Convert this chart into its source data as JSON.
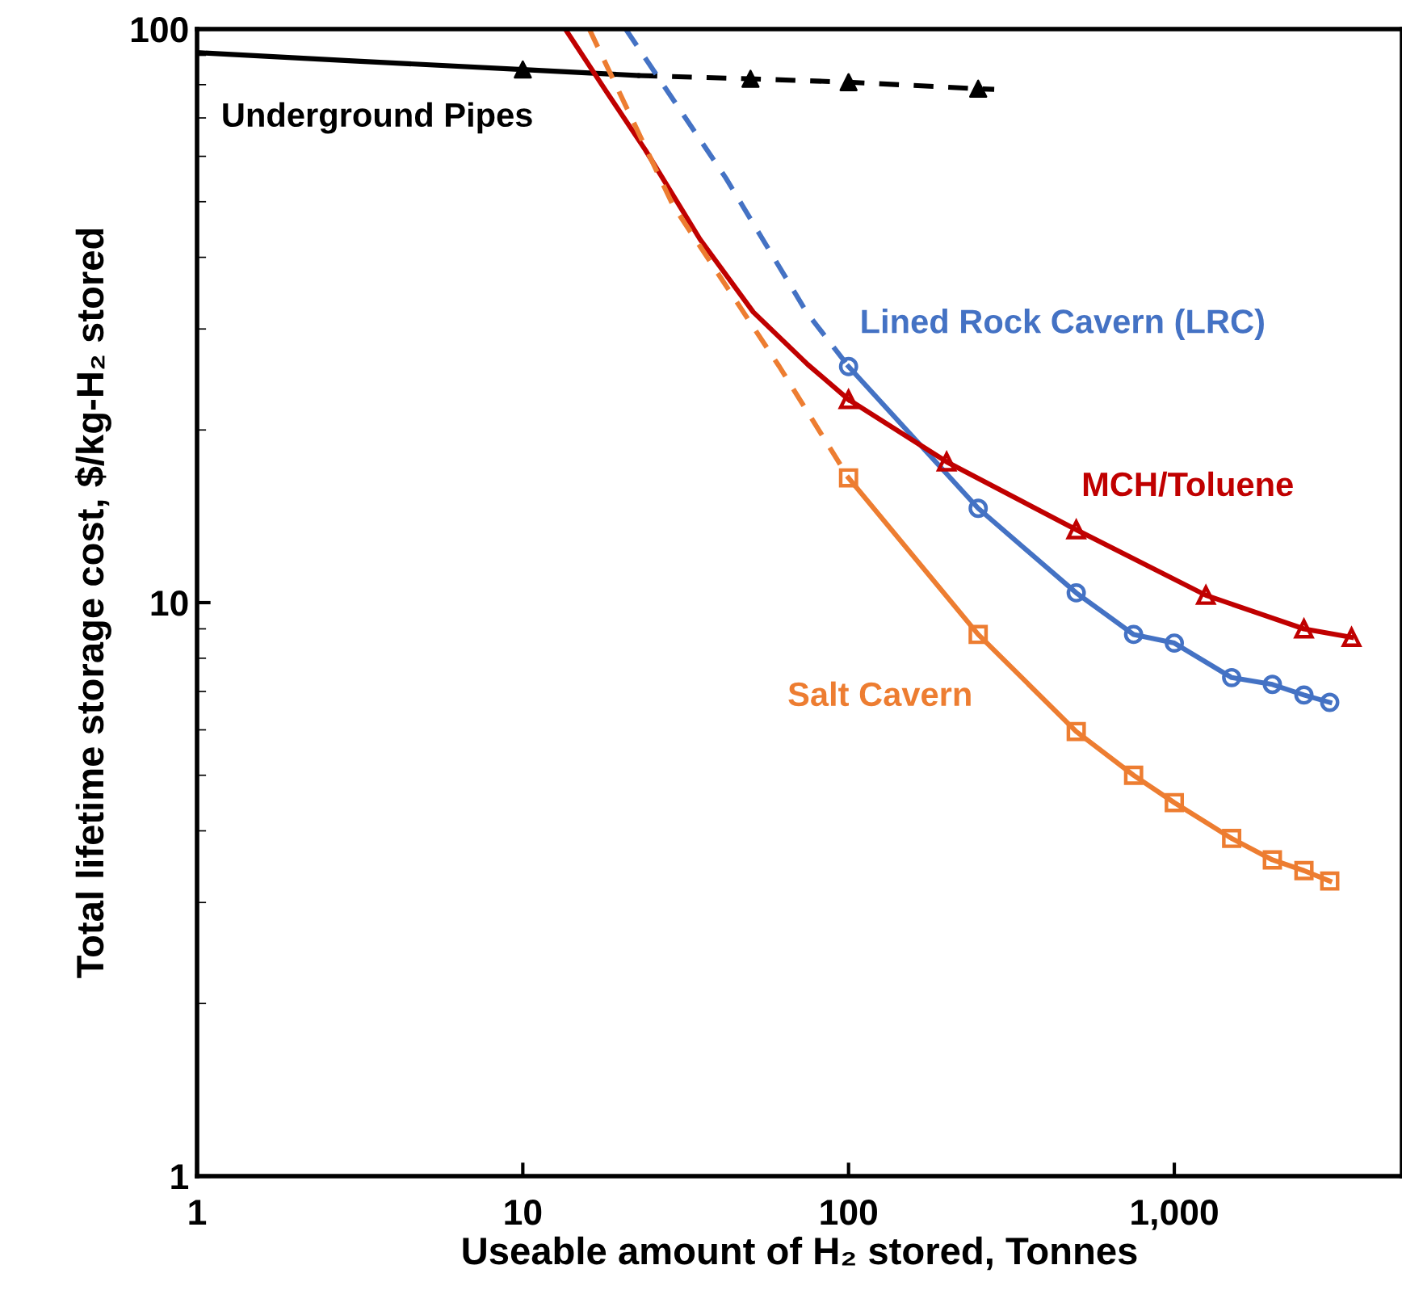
{
  "chart_data": {
    "type": "line",
    "xlabel": "Useable amount of H₂ stored, Tonnes",
    "ylabel": "Total lifetime storage cost, $/kg-H₂ stored",
    "log": "xy",
    "xlim": [
      1,
      5000
    ],
    "ylim": [
      1,
      100
    ],
    "xticks": [
      1,
      10,
      100,
      {
        "value": 1000,
        "label": "1,000"
      }
    ],
    "yticks": [
      1,
      10,
      100
    ],
    "grid": false,
    "legend": false,
    "series": [
      {
        "name": "Underground Pipes",
        "color": "#000000",
        "type": "line",
        "line_style": "solid",
        "marker": "none",
        "x": [
          1,
          3,
          10,
          22.5
        ],
        "values": [
          91,
          88,
          85,
          83
        ]
      },
      {
        "color": "#000000",
        "line_style": "dashed",
        "marker": "none",
        "x": [
          22.5,
          50,
          100,
          250,
          280
        ],
        "values": [
          83,
          81.9,
          80.8,
          78.7,
          78.5
        ]
      },
      {
        "color": "#000000",
        "type": "scatter",
        "marker": "triangle",
        "x": [
          10,
          50,
          100,
          250
        ],
        "values": [
          85,
          81.9,
          80.8,
          78.7
        ]
      },
      {
        "name": "Lined Rock Cavern (LRC)",
        "color": "#4472c4",
        "type": "line",
        "line_style": "solid",
        "marker": "circle",
        "x": [
          100,
          250,
          500,
          750,
          1000,
          1500,
          2000,
          2500,
          3000
        ],
        "values": [
          25.8,
          14.6,
          10.4,
          8.8,
          8.5,
          7.4,
          7.2,
          6.9,
          6.7
        ]
      },
      {
        "color": "#4472c4",
        "type": "line",
        "line_style": "dashed",
        "marker": "none",
        "x": [
          20.7,
          42,
          74.3,
          100
        ],
        "values": [
          100,
          55,
          32.1,
          25.8
        ]
      },
      {
        "name": "MCH/Toluene",
        "color": "#c00000",
        "type": "line",
        "line_style": "solid",
        "marker": "triangle",
        "x": [
          100,
          200,
          500,
          1250,
          2500,
          3500
        ],
        "values": [
          22.6,
          17.6,
          13.4,
          10.3,
          9.0,
          8.7
        ]
      },
      {
        "color": "#c00000",
        "line_style": "solid",
        "marker": "none",
        "x": [
          13.5,
          18,
          23.8,
          35,
          51,
          75,
          100
        ],
        "values": [
          100,
          78,
          61.5,
          43,
          32.1,
          26,
          22.6
        ]
      },
      {
        "name": "Salt Cavern",
        "color": "#ed7d31",
        "type": "line",
        "line_style": "solid",
        "marker": "square",
        "x": [
          100,
          250,
          500,
          750,
          1000,
          1500,
          2000,
          2500,
          3000
        ],
        "values": [
          16.5,
          8.8,
          5.96,
          5.0,
          4.48,
          3.88,
          3.56,
          3.41,
          3.27
        ]
      },
      {
        "color": "#ed7d31",
        "type": "line",
        "line_style": "dashed",
        "marker": "none",
        "x": [
          16,
          28.9,
          61.3,
          100
        ],
        "values": [
          100,
          49.3,
          25.8,
          16.5
        ]
      }
    ]
  }
}
